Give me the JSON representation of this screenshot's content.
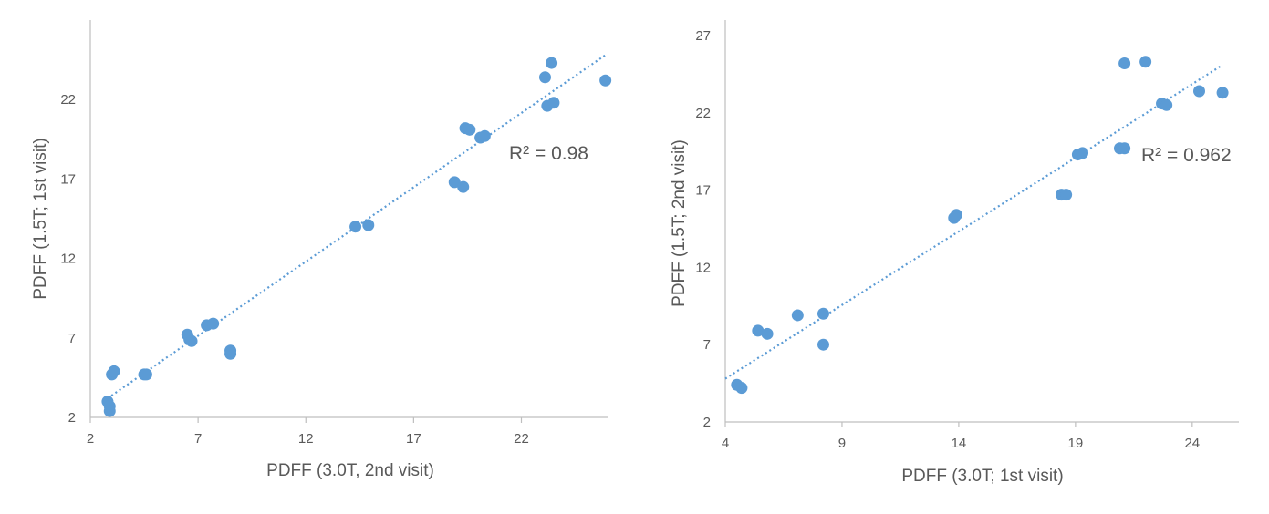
{
  "chart_data": [
    {
      "type": "scatter",
      "name": "left",
      "title": "",
      "xlabel": "PDFF (3.0T, 2nd visit)",
      "ylabel": "PDFF (1.5T; 1st visit)",
      "xlim": [
        2,
        26
      ],
      "ylim": [
        2,
        27
      ],
      "xticks": [
        2,
        7,
        12,
        17,
        22
      ],
      "yticks": [
        2,
        7,
        12,
        17,
        22
      ],
      "marker_color": "#5b9bd5",
      "trendline": {
        "type": "linear",
        "style": "dotted",
        "from": [
          2.8,
          3.2
        ],
        "to": [
          25.9,
          24.8
        ]
      },
      "r2_label": "R² = 0.98",
      "points": [
        {
          "x": 2.8,
          "y": 3.0
        },
        {
          "x": 2.9,
          "y": 2.7
        },
        {
          "x": 2.9,
          "y": 2.4
        },
        {
          "x": 3.0,
          "y": 4.7
        },
        {
          "x": 3.1,
          "y": 4.9
        },
        {
          "x": 4.5,
          "y": 4.7
        },
        {
          "x": 4.6,
          "y": 4.7
        },
        {
          "x": 6.5,
          "y": 7.2
        },
        {
          "x": 6.6,
          "y": 6.9
        },
        {
          "x": 6.7,
          "y": 6.8
        },
        {
          "x": 7.4,
          "y": 7.8
        },
        {
          "x": 7.7,
          "y": 7.9
        },
        {
          "x": 8.5,
          "y": 6.2
        },
        {
          "x": 8.5,
          "y": 6.0
        },
        {
          "x": 14.3,
          "y": 14.0
        },
        {
          "x": 14.9,
          "y": 14.1
        },
        {
          "x": 18.9,
          "y": 16.8
        },
        {
          "x": 19.3,
          "y": 16.5
        },
        {
          "x": 19.4,
          "y": 20.2
        },
        {
          "x": 19.6,
          "y": 20.1
        },
        {
          "x": 20.1,
          "y": 19.6
        },
        {
          "x": 20.3,
          "y": 19.7
        },
        {
          "x": 23.1,
          "y": 23.4
        },
        {
          "x": 23.2,
          "y": 21.6
        },
        {
          "x": 23.5,
          "y": 21.8
        },
        {
          "x": 23.4,
          "y": 24.3
        },
        {
          "x": 25.9,
          "y": 23.2
        }
      ]
    },
    {
      "type": "scatter",
      "name": "right",
      "title": "",
      "xlabel": "PDFF (3.0T; 1st visit)",
      "ylabel": "PDFF (1.5T; 2nd visit)",
      "xlim": [
        4,
        26
      ],
      "ylim": [
        2,
        28
      ],
      "xticks": [
        4,
        9,
        14,
        19,
        24
      ],
      "yticks": [
        2,
        7,
        12,
        17,
        22,
        27
      ],
      "marker_color": "#5b9bd5",
      "trendline": {
        "type": "linear",
        "style": "dotted",
        "from": [
          4.0,
          4.8
        ],
        "to": [
          25.2,
          25.0
        ]
      },
      "r2_label": "R² = 0.962",
      "points": [
        {
          "x": 4.5,
          "y": 4.4
        },
        {
          "x": 4.7,
          "y": 4.2
        },
        {
          "x": 5.4,
          "y": 7.9
        },
        {
          "x": 5.8,
          "y": 7.7
        },
        {
          "x": 7.1,
          "y": 8.9
        },
        {
          "x": 8.2,
          "y": 9.0
        },
        {
          "x": 8.2,
          "y": 7.0
        },
        {
          "x": 13.8,
          "y": 15.2
        },
        {
          "x": 13.9,
          "y": 15.4
        },
        {
          "x": 18.4,
          "y": 16.7
        },
        {
          "x": 18.6,
          "y": 16.7
        },
        {
          "x": 19.1,
          "y": 19.3
        },
        {
          "x": 19.3,
          "y": 19.4
        },
        {
          "x": 20.9,
          "y": 19.7
        },
        {
          "x": 21.1,
          "y": 19.7
        },
        {
          "x": 21.1,
          "y": 25.2
        },
        {
          "x": 22.0,
          "y": 25.3
        },
        {
          "x": 22.7,
          "y": 22.6
        },
        {
          "x": 22.9,
          "y": 22.5
        },
        {
          "x": 24.3,
          "y": 23.4
        },
        {
          "x": 25.3,
          "y": 23.3
        }
      ]
    }
  ]
}
